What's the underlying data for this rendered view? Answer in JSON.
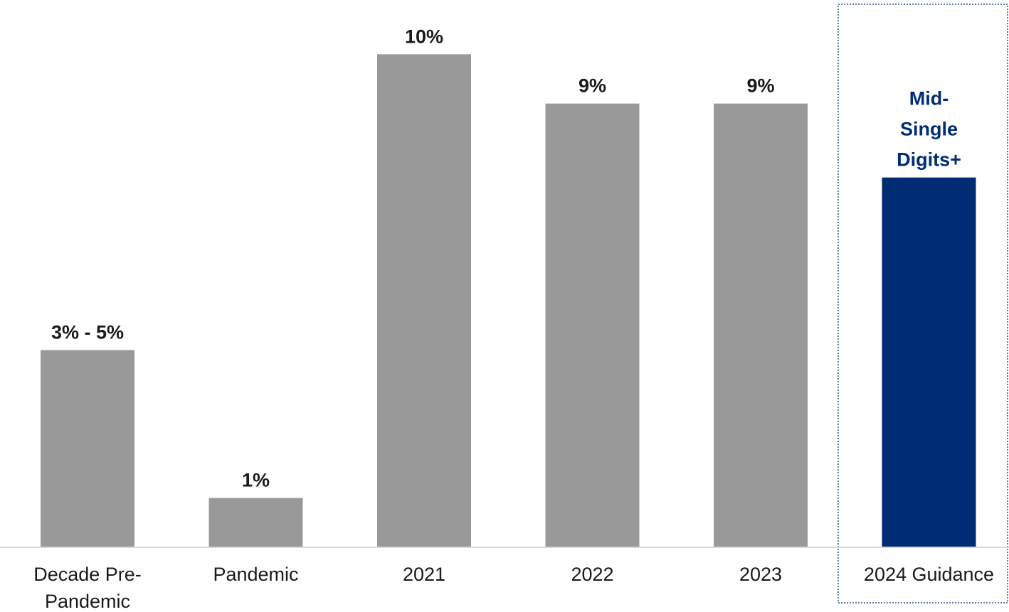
{
  "chart_data": {
    "type": "bar",
    "title": "",
    "xlabel": "",
    "ylabel": "",
    "ylim": [
      0,
      11.1
    ],
    "grid": false,
    "legend": "none",
    "categories": [
      "Decade Pre-\nPandemic",
      "Pandemic",
      "2021",
      "2022",
      "2023",
      "2024 Guidance"
    ],
    "values": [
      4,
      1,
      10,
      9,
      9,
      7.5
    ],
    "data_labels": [
      [
        "3% - 5%"
      ],
      [
        "1%"
      ],
      [
        "10%"
      ],
      [
        "9%"
      ],
      [
        "9%"
      ],
      [
        "Mid-",
        "Single",
        "Digits+"
      ]
    ],
    "highlight_index": 5,
    "colors": {
      "bar": "#999999",
      "highlight_bar": "#002c73",
      "label": "#1a1a1a",
      "highlight_label": "#002c73",
      "axis": "#d9d9d9",
      "highlight_box": "#2f4f7f"
    }
  }
}
